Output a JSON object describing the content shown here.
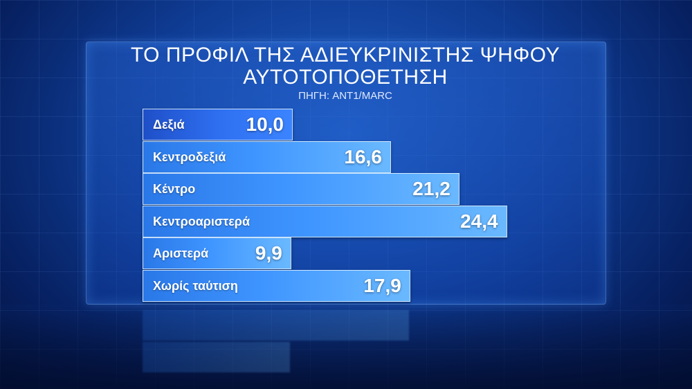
{
  "title_line1": "ΤΟ ΠΡΟΦΙΛ ΤΗΣ ΑΔΙΕΥΚΡΙΝΙΣΤΗΣ ΨΗΦΟΥ",
  "title_line2": "ΑΥΤΟΤΟΠΟΘΕΤΗΣΗ",
  "source": "ΠΗΓΗ: ANT1/MARC",
  "colors": {
    "bar": "#3f95ff",
    "background": "#0f3c94",
    "text": "#ffffff"
  },
  "chart_data": {
    "type": "bar",
    "orientation": "horizontal",
    "title": "ΤΟ ΠΡΟΦΙΛ ΤΗΣ ΑΔΙΕΥΚΡΙΝΙΣΤΗΣ ΨΗΦΟΥ ΑΥΤΟΤΟΠΟΘΕΤΗΣΗ",
    "categories": [
      "Δεξιά",
      "Κεντροδεξιά",
      "Κέντρο",
      "Κεντροαριστερά",
      "Αριστερά",
      "Χωρίς ταύτιση"
    ],
    "values": [
      10.0,
      16.6,
      21.2,
      24.4,
      9.9,
      17.9
    ],
    "value_labels": [
      "10,0",
      "16,6",
      "21,2",
      "24,4",
      "9,9",
      "17,9"
    ],
    "grid": false,
    "legend": "none"
  }
}
